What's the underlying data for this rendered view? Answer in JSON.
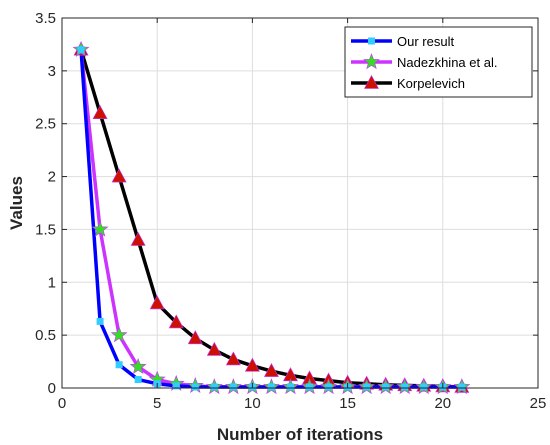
{
  "chart_data": {
    "type": "line",
    "title": "",
    "xlabel": "Number of iterations",
    "ylabel": "Values",
    "xlim": [
      0,
      25
    ],
    "ylim": [
      0,
      3.5
    ],
    "xticks": [
      0,
      5,
      10,
      15,
      20,
      25
    ],
    "yticks": [
      0,
      0.5,
      1,
      1.5,
      2,
      2.5,
      3,
      3.5
    ],
    "xtick_labels": [
      "0",
      "5",
      "10",
      "15",
      "20",
      "25"
    ],
    "ytick_labels": [
      "0",
      "0.5",
      "1",
      "1.5",
      "2",
      "2.5",
      "3",
      "3.5"
    ],
    "grid": true,
    "legend_position": "top-right",
    "x": [
      1,
      2,
      3,
      4,
      5,
      6,
      7,
      8,
      9,
      10,
      11,
      12,
      13,
      14,
      15,
      16,
      17,
      18,
      19,
      20,
      21
    ],
    "series": [
      {
        "name": "Our result",
        "color": "#0000ff",
        "marker": "square",
        "marker_color": "#33ccff",
        "values": [
          3.2,
          0.63,
          0.22,
          0.08,
          0.04,
          0.02,
          0.01,
          0.01,
          0.01,
          0.01,
          0.01,
          0.01,
          0.01,
          0.01,
          0.01,
          0.01,
          0.01,
          0.01,
          0.01,
          0.01,
          0.01
        ]
      },
      {
        "name": "Nadezkhina et al.",
        "color": "#cc33ff",
        "marker": "star",
        "marker_color": "#33dd22",
        "values": [
          3.2,
          1.5,
          0.5,
          0.2,
          0.08,
          0.04,
          0.02,
          0.01,
          0.01,
          0.01,
          0.01,
          0.01,
          0.01,
          0.01,
          0.01,
          0.01,
          0.01,
          0.01,
          0.01,
          0.01,
          0.01
        ]
      },
      {
        "name": "Korpelevich",
        "color": "#000000",
        "marker": "triangle",
        "marker_color": "#cc1100",
        "values": [
          3.2,
          2.6,
          2.0,
          1.4,
          0.8,
          0.62,
          0.47,
          0.36,
          0.27,
          0.21,
          0.16,
          0.12,
          0.09,
          0.07,
          0.05,
          0.04,
          0.03,
          0.025,
          0.02,
          0.015,
          0.01
        ]
      }
    ]
  }
}
